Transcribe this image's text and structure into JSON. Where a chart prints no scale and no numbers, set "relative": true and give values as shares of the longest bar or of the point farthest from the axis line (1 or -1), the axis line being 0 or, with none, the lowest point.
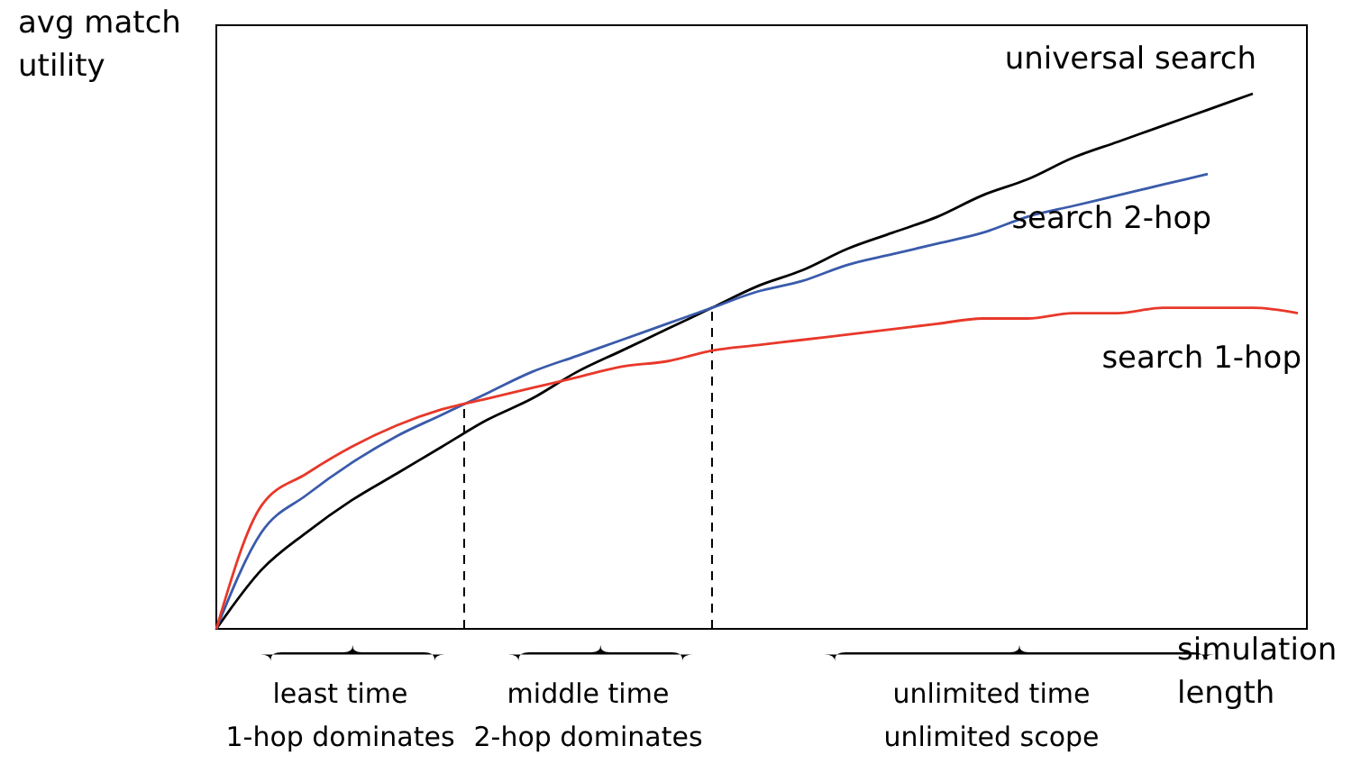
{
  "chart_data": {
    "type": "line",
    "relative": true,
    "xlabel": "simulation length",
    "ylabel": "avg match utility",
    "categories": [
      null,
      null,
      null,
      null,
      null,
      null,
      null,
      null,
      null,
      null,
      null,
      null,
      null,
      null,
      null,
      null,
      null,
      null,
      null,
      null,
      null,
      null,
      null,
      null,
      null
    ],
    "series": [
      {
        "name": "universal search",
        "color": "#000000",
        "values": [
          0,
          0.11,
          0.18,
          0.24,
          0.29,
          0.34,
          0.39,
          0.43,
          0.48,
          0.52,
          0.56,
          0.6,
          0.64,
          0.67,
          0.71,
          0.74,
          0.77,
          0.81,
          0.84,
          0.88,
          0.91,
          0.94,
          0.97,
          1.0,
          null
        ]
      },
      {
        "name": "search 2-hop",
        "color": "#3a5bab",
        "values": [
          0,
          0.18,
          0.25,
          0.31,
          0.36,
          0.4,
          0.44,
          0.48,
          0.51,
          0.54,
          0.57,
          0.6,
          0.63,
          0.65,
          0.68,
          0.7,
          0.72,
          0.74,
          0.77,
          0.79,
          0.81,
          0.83,
          0.85,
          null,
          null
        ]
      },
      {
        "name": "search 1-hop",
        "color": "#e8382a",
        "values": [
          0,
          0.23,
          0.29,
          0.34,
          0.38,
          0.41,
          0.43,
          0.45,
          0.47,
          0.49,
          0.5,
          0.52,
          0.53,
          0.54,
          0.55,
          0.56,
          0.57,
          0.58,
          0.58,
          0.59,
          0.59,
          0.6,
          0.6,
          0.6,
          0.59
        ]
      }
    ],
    "annotations": [
      "least time\n1-hop dominates",
      "middle time\n2-hop dominates",
      "unlimited time\nunlimited scope"
    ],
    "legend": false,
    "marker": "none",
    "line_style": "solid"
  }
}
